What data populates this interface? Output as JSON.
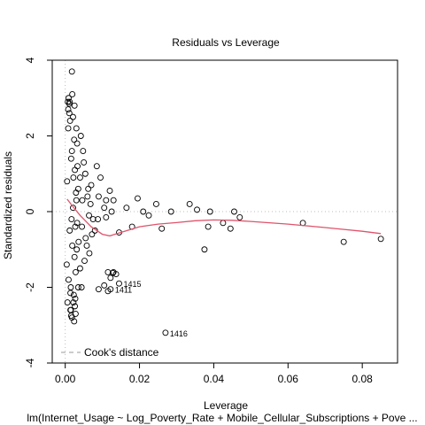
{
  "chart_data": {
    "type": "scatter",
    "title": "Residuals vs Leverage",
    "xlabel": "Leverage",
    "ylabel": "Standardized residuals",
    "subtitle": "lm(Internet_Usage ~ Log_Poverty_Rate + Mobile_Cellular_Subscriptions + Pove ...",
    "xlim": [
      -0.0035,
      0.0895
    ],
    "ylim": [
      -4.0,
      4.0
    ],
    "x_ticks": [
      0.0,
      0.02,
      0.04,
      0.06,
      0.08
    ],
    "x_tick_labels": [
      "0.00",
      "0.02",
      "0.04",
      "0.06",
      "0.08"
    ],
    "y_ticks": [
      -4,
      -2,
      0,
      2,
      4
    ],
    "y_tick_labels": [
      "-4",
      "-2",
      "0",
      "2",
      "4"
    ],
    "legend": {
      "position": "bottom-left",
      "entries": [
        {
          "label": "Cook's distance",
          "style": "dashed",
          "color": "#999999"
        }
      ]
    },
    "reference_lines": {
      "h": 0,
      "v": 0,
      "color": "#bebebe",
      "style": "dotted"
    },
    "smoother": {
      "color": "#df536b",
      "x": [
        0.0005,
        0.002,
        0.004,
        0.007,
        0.01,
        0.012,
        0.015,
        0.02,
        0.025,
        0.03,
        0.035,
        0.04,
        0.045,
        0.05,
        0.06,
        0.07,
        0.08,
        0.085
      ],
      "y": [
        0.33,
        0.14,
        -0.1,
        -0.4,
        -0.6,
        -0.64,
        -0.55,
        -0.4,
        -0.33,
        -0.29,
        -0.24,
        -0.22,
        -0.23,
        -0.26,
        -0.33,
        -0.42,
        -0.52,
        -0.58
      ]
    },
    "points": {
      "x": [
        0.0005,
        0.0012,
        0.0018,
        0.0025,
        0.003,
        0.0036,
        0.0008,
        0.0015,
        0.0022,
        0.0028,
        0.0033,
        0.0006,
        0.0011,
        0.0017,
        0.0024,
        0.0031,
        0.0007,
        0.0014,
        0.0021,
        0.0027,
        0.0035,
        0.0009,
        0.0016,
        0.0023,
        0.0029,
        0.0004,
        0.0013,
        0.0019,
        0.0026,
        0.0032,
        0.004,
        0.0045,
        0.005,
        0.0055,
        0.006,
        0.0065,
        0.007,
        0.0075,
        0.004,
        0.0048,
        0.0058,
        0.0068,
        0.0042,
        0.0052,
        0.0062,
        0.0072,
        0.0044,
        0.0054,
        0.0064,
        0.0046,
        0.0018,
        0.0019,
        0.0012,
        0.0025,
        0.0008,
        0.0022,
        0.0015,
        0.0028,
        0.0018,
        0.0024,
        0.0009,
        0.0021,
        0.0026,
        0.003,
        0.0016,
        0.0011,
        0.0027,
        0.0032,
        0.0014,
        0.0035,
        0.0085,
        0.0095,
        0.011,
        0.0125,
        0.012,
        0.013,
        0.008,
        0.009,
        0.0105,
        0.0115,
        0.0122,
        0.013,
        0.011,
        0.0105,
        0.009,
        0.0088,
        0.0145,
        0.0165,
        0.018,
        0.0195,
        0.021,
        0.0225,
        0.0245,
        0.026,
        0.0285,
        0.0335,
        0.0355,
        0.0375,
        0.0385,
        0.039,
        0.0425,
        0.0445,
        0.0455,
        0.047,
        0.064,
        0.075,
        0.085,
        0.0122,
        0.0115,
        0.0145,
        0.0137,
        0.0128,
        0.027
      ],
      "y": [
        0.8,
        -0.5,
        1.6,
        -1.2,
        0.3,
        -0.8,
        2.2,
        -2.0,
        0.9,
        -1.6,
        1.2,
        -2.4,
        2.6,
        -0.2,
        1.9,
        -1.0,
        2.9,
        -2.6,
        0.1,
        -0.4,
        0.6,
        -1.8,
        1.4,
        -2.2,
        0.5,
        -1.4,
        2.4,
        -0.9,
        1.1,
        -0.3,
        0.9,
        -0.4,
        1.3,
        -0.7,
        0.4,
        -1.1,
        0.7,
        -0.2,
        -1.5,
        1.6,
        -0.9,
        0.2,
        2.0,
        -1.3,
        0.6,
        -0.6,
        -2.0,
        1.0,
        -0.1,
        0.3,
        3.7,
        3.1,
        2.9,
        2.8,
        2.7,
        -2.4,
        -2.6,
        -2.7,
        -2.8,
        -2.9,
        3.0,
        2.5,
        -2.5,
        2.2,
        -2.75,
        2.85,
        -2.3,
        1.8,
        -2.15,
        -2.0,
        1.2,
        0.9,
        0.3,
        0.0,
        0.55,
        0.3,
        -0.5,
        -2.05,
        -1.95,
        -1.6,
        -1.75,
        -1.6,
        -0.15,
        0.1,
        0.4,
        -0.2,
        -0.55,
        0.1,
        -0.4,
        0.35,
        0.0,
        -0.1,
        0.2,
        -0.45,
        0.0,
        0.2,
        0.05,
        -1.0,
        -0.4,
        0.0,
        -0.3,
        -0.45,
        0.0,
        -0.15,
        -0.3,
        -0.8,
        -0.72,
        -2.05,
        -2.1,
        -1.9,
        -1.65,
        -1.62,
        -3.2
      ],
      "labels": [
        {
          "id": "1415",
          "x": 0.0145,
          "y": -1.9
        },
        {
          "id": "1411",
          "x": 0.0122,
          "y": -2.05
        },
        {
          "id": "1416",
          "x": 0.027,
          "y": -3.2
        }
      ]
    }
  }
}
